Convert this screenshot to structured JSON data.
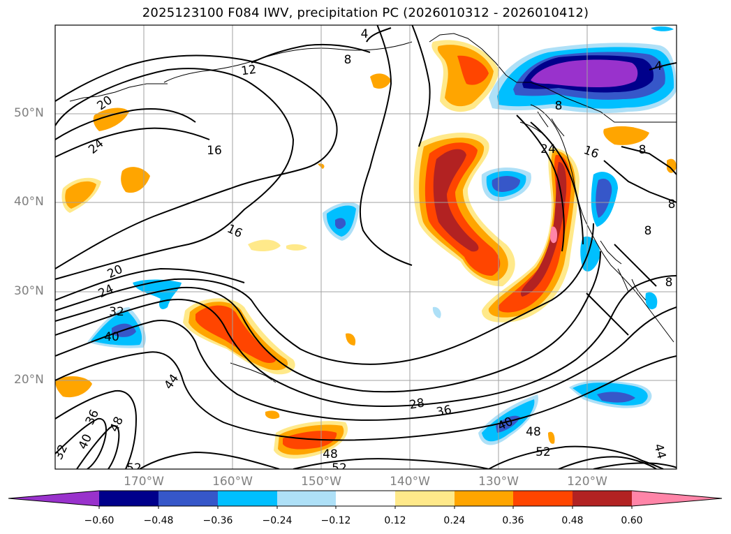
{
  "title": "2025123100 F084 IWV, precipitation PC (2026010312 - 2026010412)",
  "map": {
    "lat_labels": [
      "50°N",
      "40°N",
      "30°N",
      "20°N"
    ],
    "lon_labels": [
      "170°W",
      "160°W",
      "150°W",
      "140°W",
      "130°W",
      "120°W"
    ],
    "contour_labels": [
      "4",
      "8",
      "12",
      "20",
      "24",
      "16",
      "16",
      "20",
      "24",
      "32",
      "40",
      "44",
      "48",
      "36",
      "40",
      "32",
      "52",
      "28",
      "36",
      "40",
      "48",
      "52",
      "44",
      "4",
      "8",
      "24",
      "16",
      "8",
      "8",
      "8",
      "8",
      "48",
      "52"
    ]
  },
  "colorbar": {
    "labels": [
      "−0.60",
      "−0.48",
      "−0.36",
      "−0.24",
      "−0.12",
      "0.12",
      "0.24",
      "0.36",
      "0.48",
      "0.60"
    ],
    "colors": [
      "#9932cc",
      "#00008b",
      "#3657c9",
      "#00bfff",
      "#aee0f7",
      "#ffffff",
      "#ffe98a",
      "#ffa500",
      "#ff4500",
      "#b22222",
      "#ff85a8"
    ]
  }
}
